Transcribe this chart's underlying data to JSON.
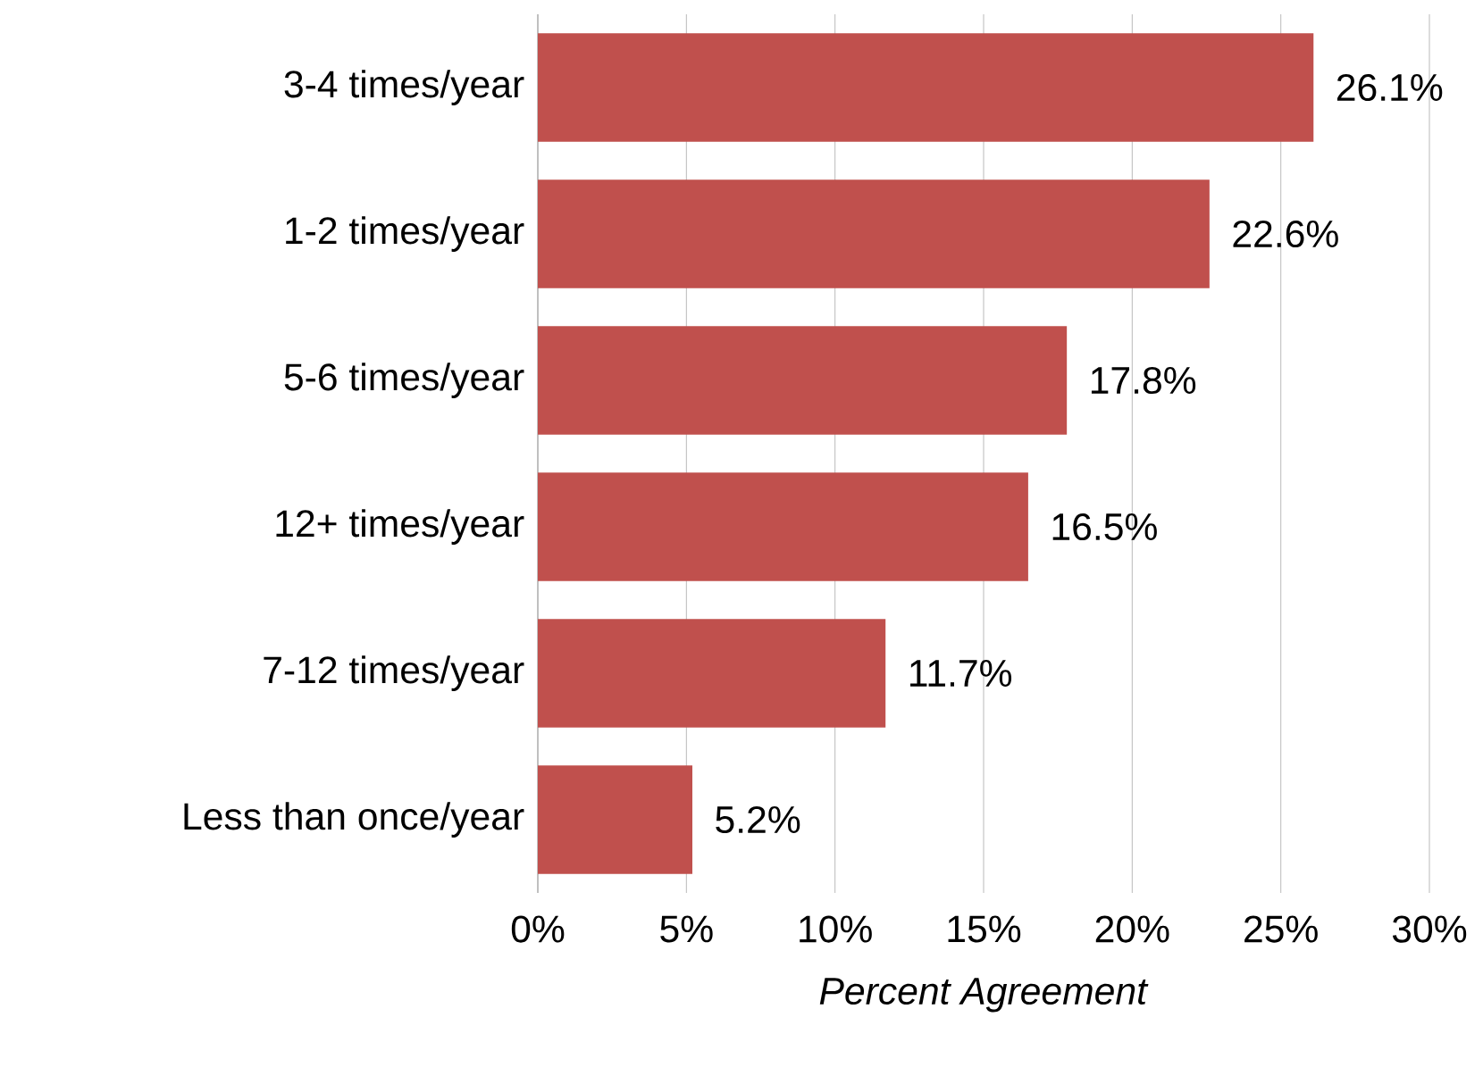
{
  "chart_data": {
    "type": "bar",
    "orientation": "horizontal",
    "xlabel": "*Percent Agreement*",
    "categories": [
      "3-4 times/year",
      "1-2 times/year",
      "5-6 times/year",
      "12+ times/year",
      "7-12 times/year",
      "Less than once/year"
    ],
    "values": [
      26.1,
      22.6,
      17.8,
      16.5,
      11.7,
      5.2
    ],
    "value_labels": [
      "26.1%",
      "22.6%",
      "17.8%",
      "16.5%",
      "11.7%",
      "5.2%"
    ],
    "color": "#c0504d",
    "xlim": [
      0,
      30
    ],
    "xticks": [
      {
        "value": 0,
        "label": "0%"
      },
      {
        "value": 5,
        "label": "5%"
      },
      {
        "value": 10,
        "label": "10%"
      },
      {
        "value": 15,
        "label": "15%"
      },
      {
        "value": 20,
        "label": "20%"
      },
      {
        "value": 25,
        "label": "25%"
      },
      {
        "value": 30,
        "label": "30%"
      }
    ],
    "grid": "x"
  }
}
